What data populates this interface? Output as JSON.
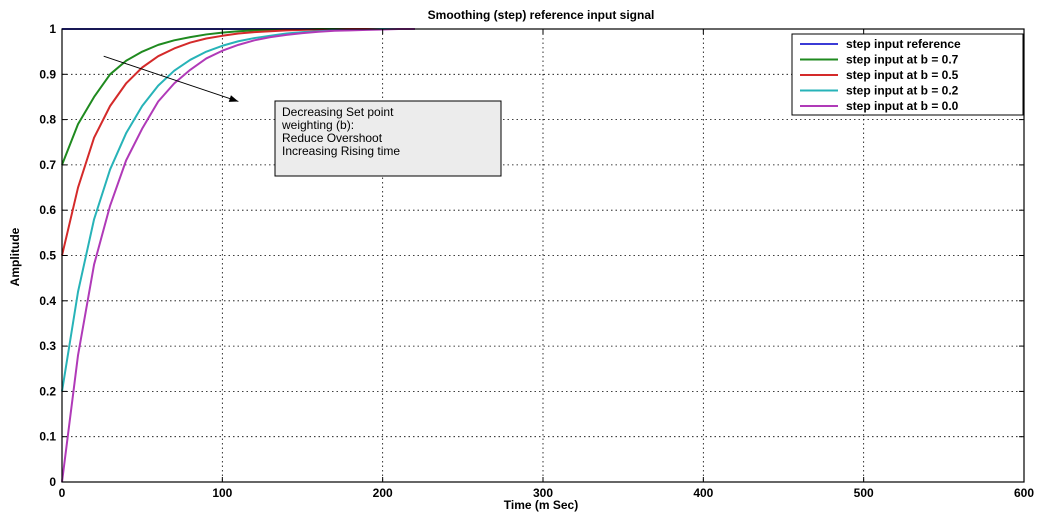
{
  "chart_data": {
    "type": "line",
    "title": "Smoothing (step) reference input signal",
    "xlabel": "Time (m Sec)",
    "ylabel": "Amplitude",
    "xlim": [
      0,
      600
    ],
    "ylim": [
      0,
      1
    ],
    "x_ticks": [
      0,
      100,
      200,
      300,
      400,
      500,
      600
    ],
    "y_ticks": [
      0,
      0.1,
      0.2,
      0.3,
      0.4,
      0.5,
      0.6,
      0.7,
      0.8,
      0.9,
      1
    ],
    "grid": true,
    "legend_position": "top-right",
    "x": [
      0,
      10,
      20,
      30,
      40,
      50,
      60,
      70,
      80,
      90,
      100,
      110,
      120,
      130,
      140,
      150,
      160,
      170,
      180,
      190,
      200,
      210,
      220
    ],
    "series": [
      {
        "name": "step input reference",
        "color": "#3b3bd6",
        "values": [
          1,
          1,
          1,
          1,
          1,
          1,
          1,
          1,
          1,
          1,
          1,
          1,
          1,
          1,
          1,
          1,
          1,
          1,
          1,
          1,
          1,
          1,
          1
        ]
      },
      {
        "name": "step input at b = 0.7",
        "color": "#1f8a1f",
        "values": [
          0.7,
          0.79,
          0.85,
          0.9,
          0.93,
          0.95,
          0.965,
          0.975,
          0.982,
          0.988,
          0.992,
          0.995,
          0.997,
          0.998,
          0.999,
          0.999,
          1,
          1,
          1,
          1,
          1,
          1,
          1
        ]
      },
      {
        "name": "step input at b = 0.5",
        "color": "#d42a2a",
        "values": [
          0.5,
          0.65,
          0.76,
          0.83,
          0.88,
          0.915,
          0.94,
          0.957,
          0.97,
          0.979,
          0.985,
          0.99,
          0.993,
          0.995,
          0.997,
          0.998,
          0.999,
          0.999,
          1,
          1,
          1,
          1,
          1
        ]
      },
      {
        "name": "step input at b = 0.2",
        "color": "#27b3b8",
        "values": [
          0.2,
          0.42,
          0.58,
          0.69,
          0.77,
          0.83,
          0.875,
          0.908,
          0.932,
          0.95,
          0.963,
          0.973,
          0.98,
          0.985,
          0.99,
          0.993,
          0.995,
          0.997,
          0.998,
          0.999,
          1,
          1,
          1
        ]
      },
      {
        "name": "step input at b = 0.0",
        "color": "#b03ab8",
        "values": [
          0,
          0.28,
          0.48,
          0.61,
          0.71,
          0.78,
          0.84,
          0.88,
          0.91,
          0.935,
          0.952,
          0.965,
          0.975,
          0.982,
          0.987,
          0.991,
          0.994,
          0.996,
          0.997,
          0.998,
          0.999,
          1,
          1
        ]
      }
    ],
    "annotation": {
      "lines": [
        "Decreasing Set point",
        "weighting (b):",
        "Reduce Overshoot",
        "Increasing Rising time"
      ],
      "arrow_from": [
        26,
        0.94
      ],
      "arrow_to": [
        110,
        0.84
      ]
    }
  }
}
